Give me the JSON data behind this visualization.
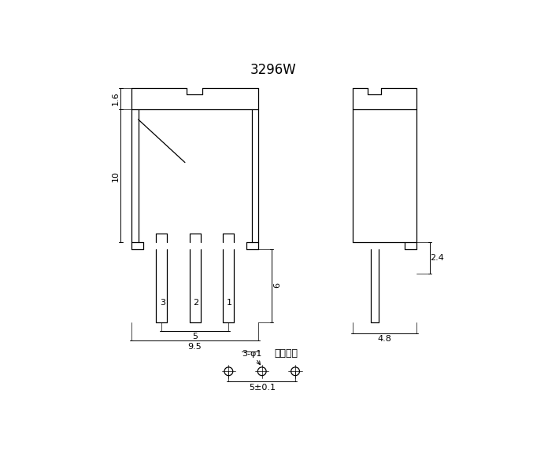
{
  "title": "3296W",
  "bg_color": "#ffffff",
  "line_color": "#000000",
  "title_fontsize": 12,
  "dim_fontsize": 8,
  "label_fontsize": 8,
  "annot_fontsize": 9
}
